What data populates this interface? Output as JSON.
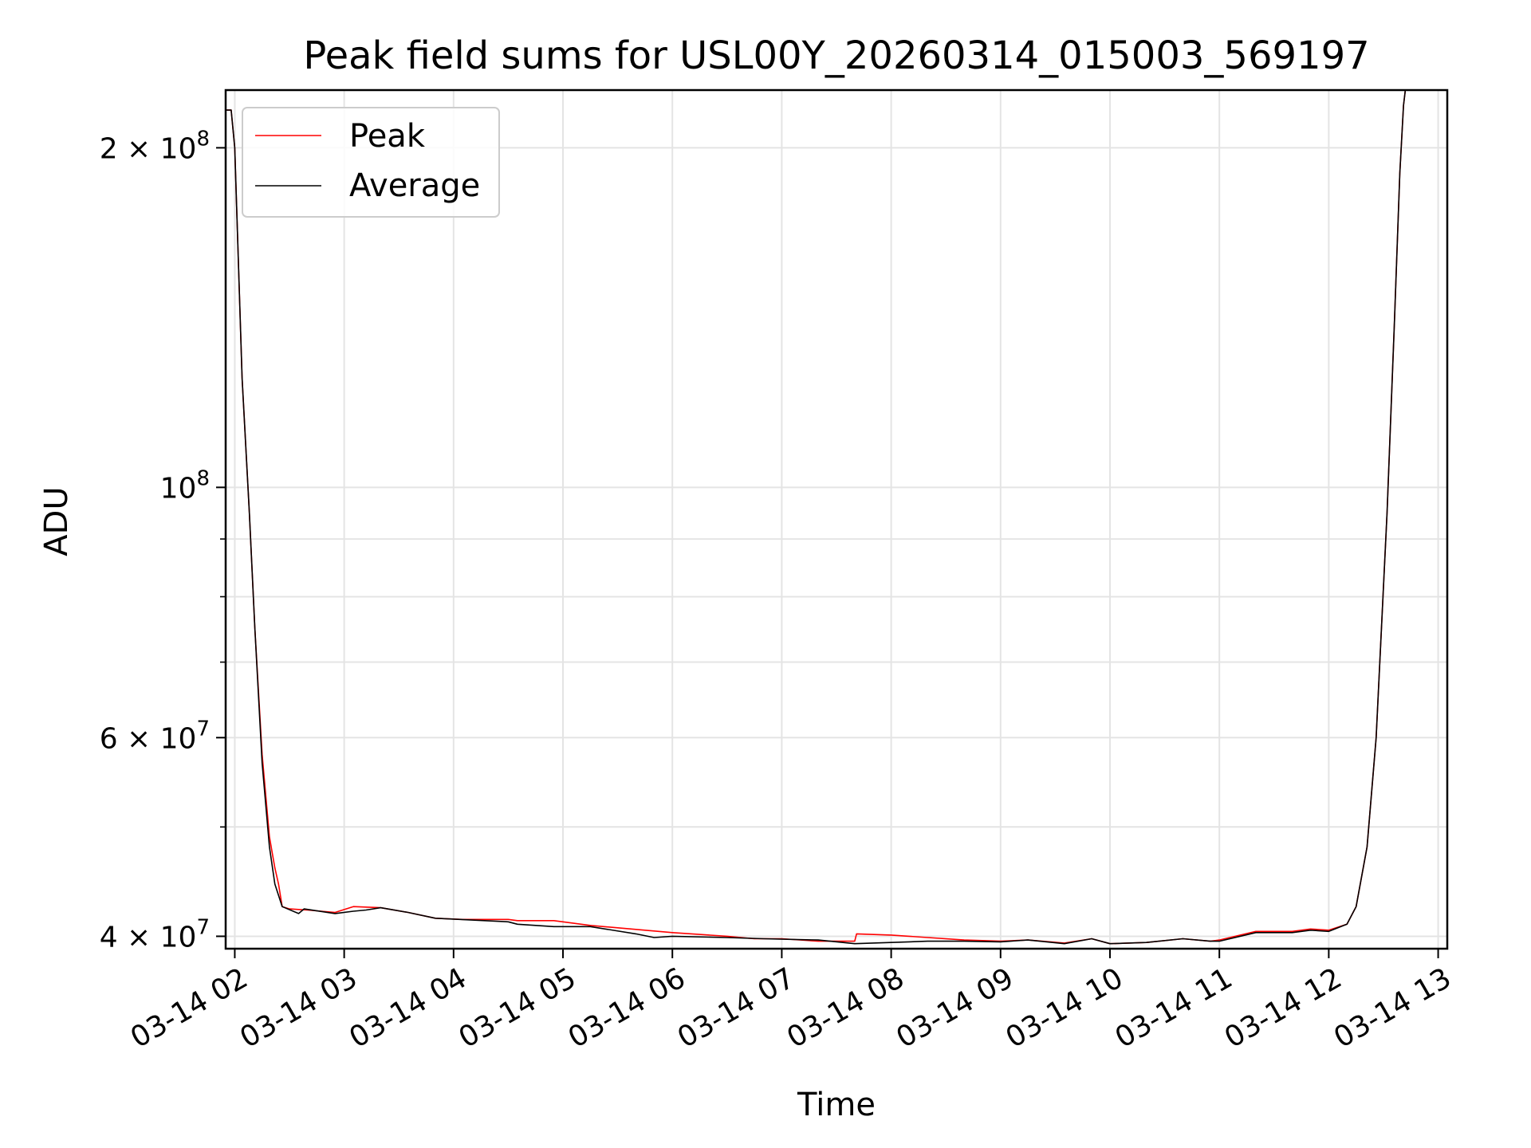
{
  "chart_data": {
    "type": "line",
    "title": "Peak field sums for USL00Y_20260314_015003_569197",
    "xlabel": "Time",
    "ylabel": "ADU",
    "yscale": "log",
    "xlim": [
      "2026-03-14 01:55",
      "2026-03-14 13:05"
    ],
    "ylim": [
      39000000,
      225000000
    ],
    "grid": true,
    "legend_position": "upper-left",
    "x_tick_labels": [
      "03-14 02",
      "03-14 03",
      "03-14 04",
      "03-14 05",
      "03-14 06",
      "03-14 07",
      "03-14 08",
      "03-14 09",
      "03-14 10",
      "03-14 11",
      "03-14 12",
      "03-14 13"
    ],
    "x_tick_values": [
      "2026-03-14 02:00",
      "2026-03-14 03:00",
      "2026-03-14 04:00",
      "2026-03-14 05:00",
      "2026-03-14 06:00",
      "2026-03-14 07:00",
      "2026-03-14 08:00",
      "2026-03-14 09:00",
      "2026-03-14 10:00",
      "2026-03-14 11:00",
      "2026-03-14 12:00",
      "2026-03-14 13:00"
    ],
    "y_tick_labels": [
      {
        "value": 40000000,
        "mant": "4",
        "exp": "7"
      },
      {
        "value": 60000000,
        "mant": "6",
        "exp": "7"
      },
      {
        "value": 100000000,
        "mant": "",
        "exp": "8"
      },
      {
        "value": 200000000,
        "mant": "2",
        "exp": "8"
      }
    ],
    "y_minor_ticks": [
      50000000,
      70000000,
      80000000,
      90000000
    ],
    "series": [
      {
        "name": "Peak",
        "color": "#ff0000",
        "points": [
          [
            "2026-03-14 01:55",
            216000000
          ],
          [
            "2026-03-14 01:58",
            216000000
          ],
          [
            "2026-03-14 02:00",
            200000000
          ],
          [
            "2026-03-14 02:04",
            125000000
          ],
          [
            "2026-03-14 02:08",
            95000000
          ],
          [
            "2026-03-14 02:11",
            75000000
          ],
          [
            "2026-03-14 02:15",
            58000000
          ],
          [
            "2026-03-14 02:19",
            49000000
          ],
          [
            "2026-03-14 02:22",
            46000000
          ],
          [
            "2026-03-14 02:24",
            44500000
          ],
          [
            "2026-03-14 02:26",
            42500000
          ],
          [
            "2026-03-14 02:30",
            42300000
          ],
          [
            "2026-03-14 02:40",
            42200000
          ],
          [
            "2026-03-14 02:55",
            42000000
          ],
          [
            "2026-03-14 03:05",
            42500000
          ],
          [
            "2026-03-14 03:20",
            42400000
          ],
          [
            "2026-03-14 03:35",
            42000000
          ],
          [
            "2026-03-14 03:50",
            41500000
          ],
          [
            "2026-03-14 04:05",
            41400000
          ],
          [
            "2026-03-14 04:30",
            41400000
          ],
          [
            "2026-03-14 04:35",
            41300000
          ],
          [
            "2026-03-14 04:55",
            41300000
          ],
          [
            "2026-03-14 05:15",
            40900000
          ],
          [
            "2026-03-14 05:45",
            40500000
          ],
          [
            "2026-03-14 06:00",
            40300000
          ],
          [
            "2026-03-14 06:30",
            40000000
          ],
          [
            "2026-03-14 06:45",
            39800000
          ],
          [
            "2026-03-14 07:00",
            39800000
          ],
          [
            "2026-03-14 07:20",
            39600000
          ],
          [
            "2026-03-14 07:40",
            39600000
          ],
          [
            "2026-03-14 07:41",
            40200000
          ],
          [
            "2026-03-14 08:00",
            40100000
          ],
          [
            "2026-03-14 08:20",
            39900000
          ],
          [
            "2026-03-14 08:40",
            39700000
          ],
          [
            "2026-03-14 09:00",
            39600000
          ],
          [
            "2026-03-14 09:15",
            39700000
          ],
          [
            "2026-03-14 09:35",
            39450000
          ],
          [
            "2026-03-14 09:50",
            39800000
          ],
          [
            "2026-03-14 10:00",
            39400000
          ],
          [
            "2026-03-14 10:20",
            39500000
          ],
          [
            "2026-03-14 10:40",
            39800000
          ],
          [
            "2026-03-14 10:55",
            39600000
          ],
          [
            "2026-03-14 11:00",
            39700000
          ],
          [
            "2026-03-14 11:20",
            40400000
          ],
          [
            "2026-03-14 11:40",
            40400000
          ],
          [
            "2026-03-14 11:50",
            40600000
          ],
          [
            "2026-03-14 12:00",
            40500000
          ],
          [
            "2026-03-14 12:10",
            41000000
          ],
          [
            "2026-03-14 12:15",
            42500000
          ],
          [
            "2026-03-14 12:21",
            48000000
          ],
          [
            "2026-03-14 12:26",
            60000000
          ],
          [
            "2026-03-14 12:32",
            95000000
          ],
          [
            "2026-03-14 12:36",
            140000000
          ],
          [
            "2026-03-14 12:39",
            190000000
          ],
          [
            "2026-03-14 12:41",
            218000000
          ],
          [
            "2026-03-14 12:42",
            225000000
          ]
        ]
      },
      {
        "name": "Average",
        "color": "#000000",
        "points": [
          [
            "2026-03-14 01:55",
            216000000
          ],
          [
            "2026-03-14 01:58",
            216000000
          ],
          [
            "2026-03-14 02:00",
            200000000
          ],
          [
            "2026-03-14 02:04",
            125000000
          ],
          [
            "2026-03-14 02:08",
            95000000
          ],
          [
            "2026-03-14 02:11",
            75000000
          ],
          [
            "2026-03-14 02:15",
            57000000
          ],
          [
            "2026-03-14 02:19",
            48000000
          ],
          [
            "2026-03-14 02:22",
            44500000
          ],
          [
            "2026-03-14 02:26",
            42500000
          ],
          [
            "2026-03-14 02:35",
            41900000
          ],
          [
            "2026-03-14 02:38",
            42300000
          ],
          [
            "2026-03-14 02:55",
            41900000
          ],
          [
            "2026-03-14 03:05",
            42100000
          ],
          [
            "2026-03-14 03:12",
            42200000
          ],
          [
            "2026-03-14 03:20",
            42400000
          ],
          [
            "2026-03-14 03:35",
            42000000
          ],
          [
            "2026-03-14 03:50",
            41500000
          ],
          [
            "2026-03-14 04:30",
            41200000
          ],
          [
            "2026-03-14 04:35",
            41000000
          ],
          [
            "2026-03-14 04:55",
            40800000
          ],
          [
            "2026-03-14 05:15",
            40800000
          ],
          [
            "2026-03-14 05:40",
            40200000
          ],
          [
            "2026-03-14 05:50",
            39900000
          ],
          [
            "2026-03-14 06:00",
            40000000
          ],
          [
            "2026-03-14 06:30",
            39900000
          ],
          [
            "2026-03-14 06:50",
            39800000
          ],
          [
            "2026-03-14 07:20",
            39700000
          ],
          [
            "2026-03-14 07:40",
            39400000
          ],
          [
            "2026-03-14 08:00",
            39500000
          ],
          [
            "2026-03-14 08:20",
            39600000
          ],
          [
            "2026-03-14 08:40",
            39600000
          ],
          [
            "2026-03-14 09:00",
            39550000
          ],
          [
            "2026-03-14 09:15",
            39700000
          ],
          [
            "2026-03-14 09:35",
            39400000
          ],
          [
            "2026-03-14 09:50",
            39800000
          ],
          [
            "2026-03-14 10:00",
            39400000
          ],
          [
            "2026-03-14 10:20",
            39500000
          ],
          [
            "2026-03-14 10:40",
            39800000
          ],
          [
            "2026-03-14 10:55",
            39600000
          ],
          [
            "2026-03-14 11:00",
            39600000
          ],
          [
            "2026-03-14 11:20",
            40300000
          ],
          [
            "2026-03-14 11:40",
            40300000
          ],
          [
            "2026-03-14 11:50",
            40500000
          ],
          [
            "2026-03-14 12:00",
            40400000
          ],
          [
            "2026-03-14 12:10",
            41000000
          ],
          [
            "2026-03-14 12:15",
            42500000
          ],
          [
            "2026-03-14 12:21",
            48000000
          ],
          [
            "2026-03-14 12:26",
            60000000
          ],
          [
            "2026-03-14 12:32",
            95000000
          ],
          [
            "2026-03-14 12:36",
            140000000
          ],
          [
            "2026-03-14 12:39",
            190000000
          ],
          [
            "2026-03-14 12:41",
            218000000
          ],
          [
            "2026-03-14 12:42",
            225000000
          ]
        ]
      }
    ]
  }
}
